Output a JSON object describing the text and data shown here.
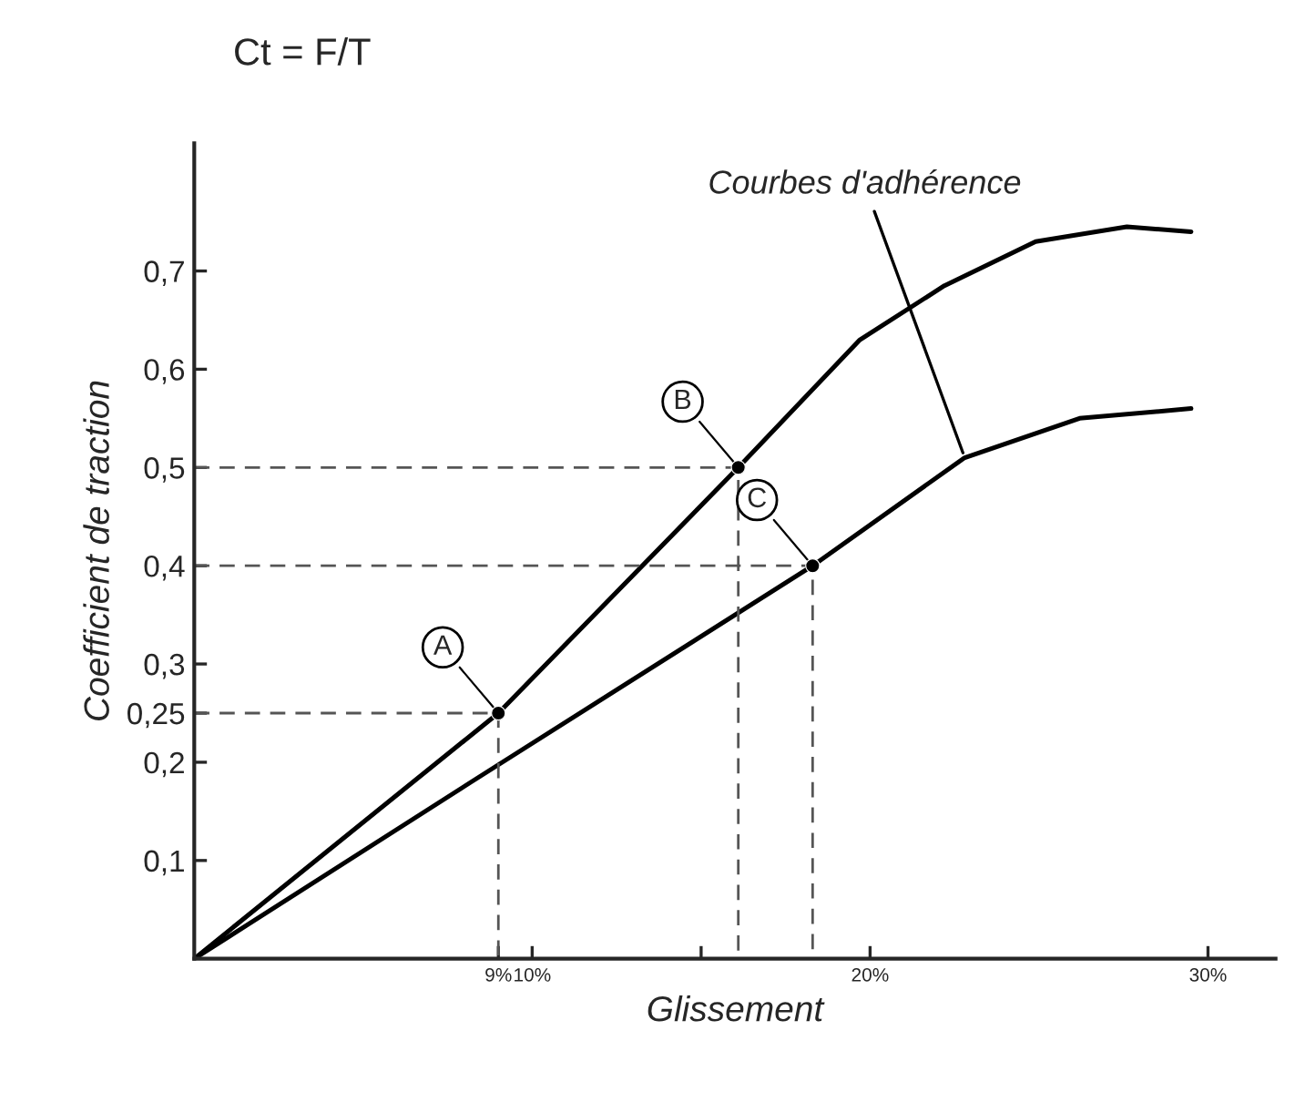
{
  "chart_data": {
    "type": "line",
    "title": "Ct = F/T",
    "xlabel": "Glissement",
    "ylabel": "Coefficient de traction",
    "annotations": [
      {
        "text": "A",
        "x": 9,
        "y": 0.25
      },
      {
        "text": "B",
        "x": 16.1,
        "y": 0.5
      },
      {
        "text": "C",
        "x": 18.3,
        "y": 0.4
      },
      {
        "text": "Courbes d'adhérence",
        "x": 22.8,
        "y": 0.51
      }
    ],
    "series": [
      {
        "color": "#000000",
        "x": [
          0,
          9,
          16.1,
          19.7,
          22.2,
          24.9,
          27.6,
          29.5
        ],
        "values": [
          0,
          0.25,
          0.5,
          0.63,
          0.685,
          0.73,
          0.745,
          0.74
        ]
      },
      {
        "color": "#000000",
        "x": [
          0,
          8.2,
          18.3,
          22.8,
          26.2,
          29.5
        ],
        "values": [
          0,
          0.18,
          0.4,
          0.51,
          0.55,
          0.56
        ]
      },
      {
        "type": "scatter",
        "color": "#000000",
        "x": [
          9,
          16.1,
          18.3
        ],
        "values": [
          0.25,
          0.5,
          0.4
        ]
      },
      {
        "color": "#555555",
        "line_style": "dashed",
        "x": [
          0,
          9,
          9
        ],
        "values": [
          0.25,
          0.25,
          0
        ]
      },
      {
        "color": "#555555",
        "line_style": "dashed",
        "x": [
          0,
          16.1,
          16.1
        ],
        "values": [
          0.5,
          0.5,
          0
        ]
      },
      {
        "color": "#555555",
        "line_style": "dashed",
        "x": [
          0,
          18.3,
          18.3
        ],
        "values": [
          0.4,
          0.4,
          0
        ]
      }
    ],
    "xlim": [
      0,
      32
    ],
    "ylim": [
      0,
      0.83
    ],
    "xticks": [
      {
        "value": 9,
        "label": "9%"
      },
      {
        "value": 10,
        "label": "10%"
      },
      {
        "value": 15,
        "label": null
      },
      {
        "value": 20,
        "label": "20%"
      },
      {
        "value": 30,
        "label": "30%"
      }
    ],
    "yticks": [
      {
        "value": 0.1,
        "label": "0,1"
      },
      {
        "value": 0.2,
        "label": "0,2"
      },
      {
        "value": 0.25,
        "label": "0,25"
      },
      {
        "value": 0.3,
        "label": "0,3"
      },
      {
        "value": 0.4,
        "label": "0,4"
      },
      {
        "value": 0.5,
        "label": "0,5"
      },
      {
        "value": 0.6,
        "label": "0,6"
      },
      {
        "value": 0.7,
        "label": "0,7"
      }
    ],
    "grid": false,
    "legend": false
  }
}
